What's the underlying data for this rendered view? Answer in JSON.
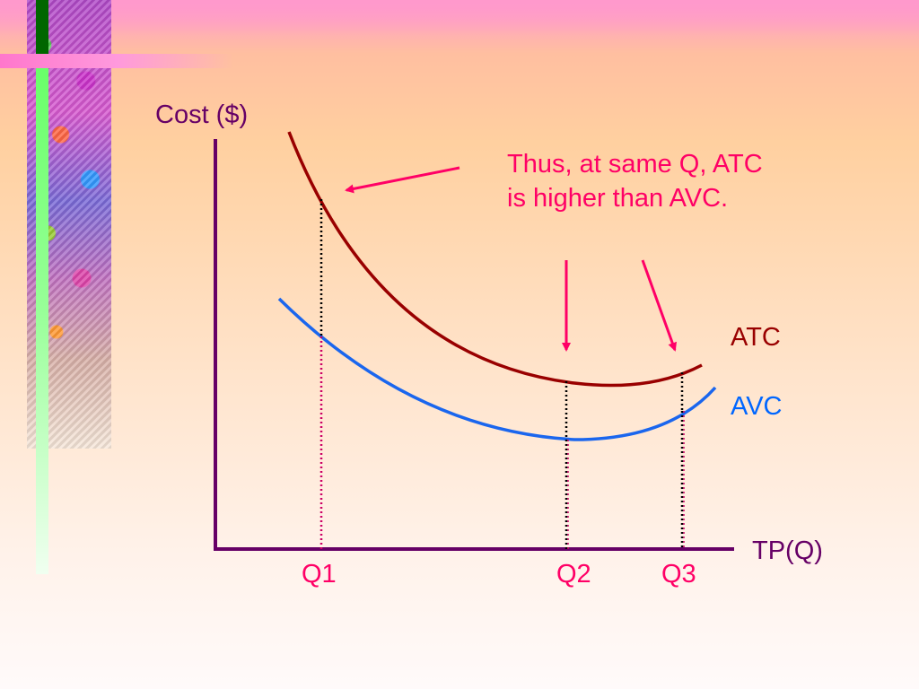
{
  "axes": {
    "y_label": "Cost ($)",
    "x_label": "TP(Q)"
  },
  "curves": {
    "atc": {
      "label": "ATC",
      "color": "#990000"
    },
    "avc": {
      "label": "AVC",
      "color": "#0066ff"
    }
  },
  "quantities": [
    "Q1",
    "Q2",
    "Q3"
  ],
  "annotation": {
    "line1": "Thus, at same Q, ATC",
    "line2": "is higher than AVC."
  },
  "colors": {
    "axis": "#660066",
    "arrow": "#ff0066",
    "guide": "#000000"
  }
}
